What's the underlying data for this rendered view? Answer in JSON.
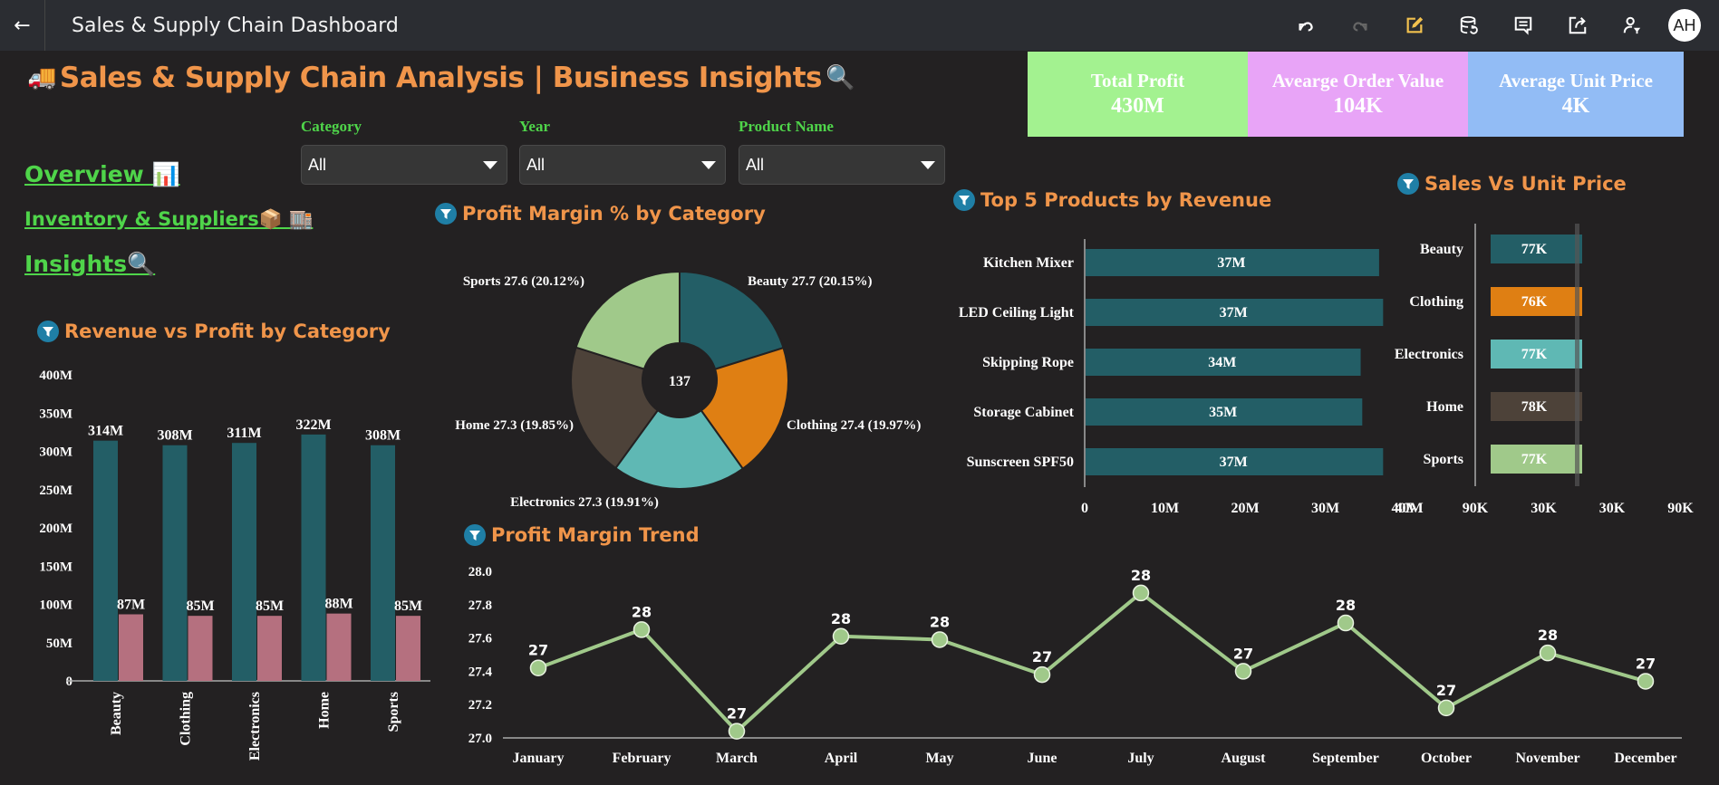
{
  "app": {
    "title": "Sales & Supply Chain Dashboard",
    "back_label": "←",
    "avatar_initials": "AH",
    "toolbar_icons": [
      "undo-icon",
      "redo-icon",
      "edit-icon",
      "data-refresh-icon",
      "comment-icon",
      "share-icon",
      "user-filter-icon"
    ]
  },
  "page": {
    "heading_emoji": "🚚",
    "heading": "Sales & Supply Chain Analysis | Business Insights",
    "heading_suffix_emoji": "🔍"
  },
  "kpis": [
    {
      "label": "Total Profit",
      "value": "430M",
      "color": "#a3f290"
    },
    {
      "label": "Avearge Order Value",
      "value": "104K",
      "color": "#e8a4f7"
    },
    {
      "label": "Average Unit Price",
      "value": "4K",
      "color": "#92bcf5"
    }
  ],
  "nav": [
    {
      "label": "Overview 📊"
    },
    {
      "label": "Inventory & Suppliers📦 🏬"
    },
    {
      "label": "Insights🔍"
    }
  ],
  "filters": [
    {
      "label": "Category",
      "value": "All"
    },
    {
      "label": "Year",
      "value": "All"
    },
    {
      "label": "Product Name",
      "value": "All"
    }
  ],
  "colors": {
    "teal": "#235e66",
    "rose": "#b5707f",
    "orange": "#df7f13",
    "aqua": "#5fb8b4",
    "brown": "#4d4239",
    "sage": "#a0c98a",
    "title_orange": "#f0954a",
    "nav_green": "#4fd54a"
  },
  "chart_data": [
    {
      "id": "revenue_profit",
      "type": "bar",
      "title": "Revenue vs Profit by Category",
      "categories": [
        "Beauty",
        "Clothing",
        "Electronics",
        "Home",
        "Sports"
      ],
      "series": [
        {
          "name": "Revenue",
          "values": [
            314,
            308,
            311,
            322,
            308
          ],
          "labels": [
            "314M",
            "308M",
            "311M",
            "322M",
            "308M"
          ]
        },
        {
          "name": "Profit",
          "values": [
            87,
            85,
            85,
            88,
            85
          ],
          "labels": [
            "87M",
            "85M",
            "85M",
            "88M",
            "85M"
          ]
        }
      ],
      "ylim": [
        0,
        400
      ],
      "yticks": [
        "0",
        "50M",
        "100M",
        "150M",
        "200M",
        "250M",
        "300M",
        "350M",
        "400M"
      ],
      "unit": "M"
    },
    {
      "id": "margin_pie",
      "type": "pie",
      "title": "Profit Margin % by Category",
      "center_label": "137",
      "slices": [
        {
          "name": "Beauty",
          "value": 27.7,
          "pct": "20.15%",
          "label": "Beauty 27.7 (20.15%)"
        },
        {
          "name": "Clothing",
          "value": 27.4,
          "pct": "19.97%",
          "label": "Clothing 27.4 (19.97%)"
        },
        {
          "name": "Electronics",
          "value": 27.3,
          "pct": "19.91%",
          "label": "Electronics 27.3 (19.91%)"
        },
        {
          "name": "Home",
          "value": 27.3,
          "pct": "19.85%",
          "label": "Home 27.3 (19.85%)"
        },
        {
          "name": "Sports",
          "value": 27.6,
          "pct": "20.12%",
          "label": "Sports 27.6 (20.12%)"
        }
      ]
    },
    {
      "id": "top_products",
      "type": "bar",
      "orientation": "horizontal",
      "title": "Top 5 Products by Revenue",
      "categories": [
        "Kitchen Mixer",
        "LED Ceiling Light",
        "Skipping Rope",
        "Storage Cabinet",
        "Sunscreen SPF50"
      ],
      "values": [
        36.6,
        37.1,
        34.3,
        34.5,
        37.1
      ],
      "labels": [
        "37M",
        "37M",
        "34M",
        "35M",
        "37M"
      ],
      "xlim": [
        0,
        40
      ],
      "xticks": [
        "0",
        "10M",
        "20M",
        "30M",
        "40M"
      ]
    },
    {
      "id": "sales_unit_price",
      "type": "bar",
      "orientation": "horizontal",
      "title": "Sales Vs Unit Price",
      "categories": [
        "Beauty",
        "Clothing",
        "Electronics",
        "Home",
        "Sports"
      ],
      "values": [
        77,
        76,
        77,
        78,
        77
      ],
      "labels": [
        "77K",
        "76K",
        "77K",
        "78K",
        "77K"
      ],
      "xticks": [
        "90K",
        "30K",
        "30K",
        "90K"
      ]
    },
    {
      "id": "margin_trend",
      "type": "line",
      "title": "Profit Margin Trend",
      "x": [
        "January",
        "February",
        "March",
        "April",
        "May",
        "June",
        "July",
        "August",
        "September",
        "October",
        "November",
        "December"
      ],
      "values": [
        27.42,
        27.65,
        27.04,
        27.61,
        27.59,
        27.38,
        27.87,
        27.4,
        27.69,
        27.18,
        27.51,
        27.34
      ],
      "labels": [
        "27",
        "28",
        "27",
        "28",
        "28",
        "27",
        "28",
        "27",
        "28",
        "27",
        "28",
        "27"
      ],
      "ylim": [
        27.0,
        28.0
      ],
      "yticks": [
        "27.0",
        "27.2",
        "27.4",
        "27.6",
        "27.8",
        "28.0"
      ]
    }
  ]
}
